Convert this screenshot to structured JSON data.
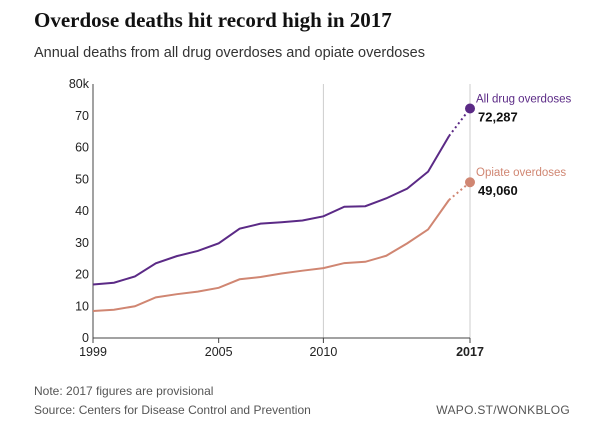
{
  "chart_data": {
    "type": "line",
    "title": "Overdose deaths hit record high in 2017",
    "subtitle": "Annual deaths from all drug overdoses and opiate overdoses",
    "x": [
      1999,
      2000,
      2001,
      2002,
      2003,
      2004,
      2005,
      2006,
      2007,
      2008,
      2009,
      2010,
      2011,
      2012,
      2013,
      2014,
      2015,
      2016,
      2017
    ],
    "x_ticks": [
      "1999",
      "2005",
      "2010",
      "2017"
    ],
    "y_ticks": [
      "0",
      "10",
      "20",
      "30",
      "40",
      "50",
      "60",
      "70",
      "80k"
    ],
    "ylim": [
      0,
      80000
    ],
    "xlim": [
      1999,
      2017
    ],
    "grid": "vertical lines at 2010 and 2017",
    "provisional_year": 2017,
    "series": [
      {
        "name": "All drug overdoses",
        "color": "#5b2a86",
        "values": [
          16849,
          17415,
          19394,
          23518,
          25785,
          27424,
          29813,
          34425,
          36010,
          36450,
          37004,
          38329,
          41340,
          41502,
          43982,
          47055,
          52404,
          63632,
          72287
        ],
        "end_label": "72,287"
      },
      {
        "name": "Opiate overdoses",
        "color": "#d08672",
        "values": [
          8500,
          8900,
          10000,
          12800,
          13800,
          14600,
          15800,
          18500,
          19200,
          20300,
          21200,
          22000,
          23600,
          24000,
          25900,
          29800,
          34200,
          43500,
          49060
        ],
        "end_label": "49,060"
      }
    ]
  },
  "notes": {
    "note": "Note: 2017 figures are provisional",
    "source": "Source: Centers for Disease Control and Prevention",
    "credit": "WAPO.ST/WONKBLOG"
  }
}
